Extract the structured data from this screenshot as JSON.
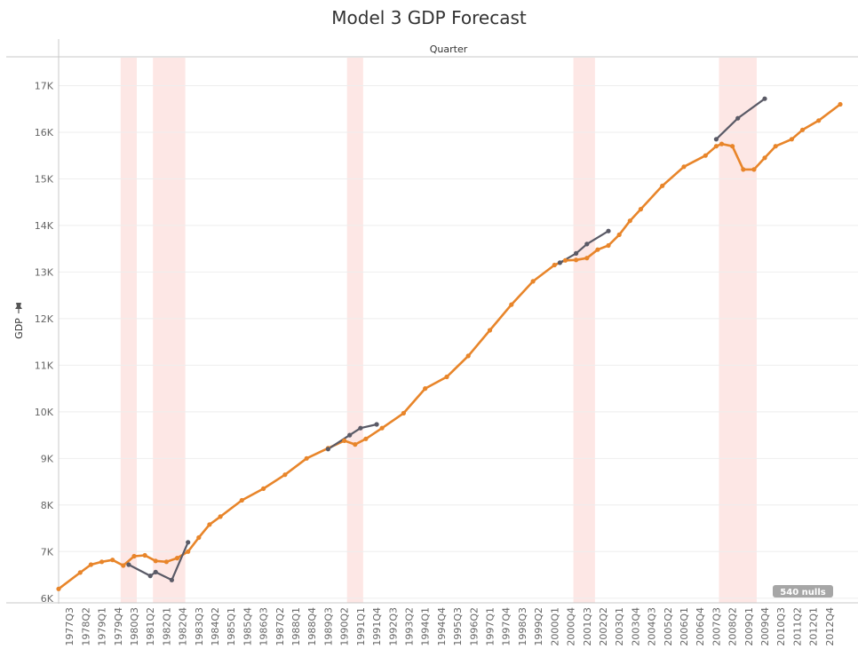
{
  "chart_data": {
    "type": "line",
    "title": "Model 3 GDP Forecast",
    "header": "Quarter",
    "ylabel": "GDP",
    "ylim": [
      5900,
      17600
    ],
    "yticks": [
      6000,
      7000,
      8000,
      9000,
      10000,
      11000,
      12000,
      13000,
      14000,
      15000,
      16000,
      17000
    ],
    "ytick_labels": [
      "6K",
      "7K",
      "8K",
      "9K",
      "10K",
      "11K",
      "12K",
      "13K",
      "14K",
      "15K",
      "16K",
      "17K"
    ],
    "x_start": "1977Q1",
    "x_end": "2013Q2",
    "xtick_labels": [
      "1977Q3",
      "1978Q2",
      "1979Q1",
      "1979Q4",
      "1980Q3",
      "1981Q2",
      "1982Q1",
      "1982Q4",
      "1983Q3",
      "1984Q2",
      "1985Q1",
      "1985Q4",
      "1986Q3",
      "1987Q2",
      "1988Q1",
      "1988Q4",
      "1989Q3",
      "1990Q2",
      "1991Q1",
      "1991Q4",
      "1992Q3",
      "1993Q2",
      "1994Q1",
      "1994Q4",
      "1995Q3",
      "1996Q2",
      "1997Q1",
      "1997Q4",
      "1998Q3",
      "1999Q2",
      "2000Q1",
      "2000Q4",
      "2001Q3",
      "2002Q2",
      "2003Q1",
      "2003Q4",
      "2004Q3",
      "2005Q2",
      "2006Q1",
      "2006Q4",
      "2007Q3",
      "2008Q2",
      "2009Q1",
      "2009Q4",
      "2010Q3",
      "2011Q2",
      "2012Q1",
      "2012Q4"
    ],
    "recession_bands": [
      {
        "start": "1980Q1",
        "end": "1980Q3"
      },
      {
        "start": "1981Q3",
        "end": "1982Q4"
      },
      {
        "start": "1990Q3",
        "end": "1991Q1"
      },
      {
        "start": "2001Q1",
        "end": "2001Q4"
      },
      {
        "start": "2007Q4",
        "end": "2009Q2"
      }
    ],
    "series": [
      {
        "color": "#E8852A",
        "x": [
          "1977Q1",
          "1978Q1",
          "1978Q3",
          "1979Q1",
          "1979Q3",
          "1980Q1",
          "1980Q3",
          "1981Q1",
          "1981Q3",
          "1982Q1",
          "1982Q3",
          "1983Q1",
          "1983Q3",
          "1984Q1",
          "1984Q3",
          "1985Q3",
          "1986Q3",
          "1987Q3",
          "1988Q3",
          "1989Q3",
          "1990Q2",
          "1990Q4",
          "1991Q2",
          "1992Q1",
          "1993Q1",
          "1994Q1",
          "1995Q1",
          "1996Q1",
          "1997Q1",
          "1998Q1",
          "1999Q1",
          "2000Q1",
          "2000Q3",
          "2001Q1",
          "2001Q3",
          "2002Q1",
          "2002Q3",
          "2003Q1",
          "2003Q3",
          "2004Q1",
          "2005Q1",
          "2006Q1",
          "2007Q1",
          "2007Q3",
          "2007Q4",
          "2008Q2",
          "2008Q4",
          "2009Q2",
          "2009Q4",
          "2010Q2",
          "2011Q1",
          "2011Q3",
          "2012Q2",
          "2013Q2"
        ],
        "values": [
          6200,
          6550,
          6720,
          6780,
          6820,
          6700,
          6900,
          6920,
          6800,
          6780,
          6860,
          7000,
          7300,
          7580,
          7750,
          8100,
          8350,
          8650,
          9000,
          9220,
          9380,
          9300,
          9420,
          9650,
          9970,
          10500,
          10750,
          11200,
          11750,
          12300,
          12800,
          13150,
          13250,
          13260,
          13300,
          13480,
          13570,
          13800,
          14100,
          14350,
          14850,
          15260,
          15500,
          15700,
          15750,
          15700,
          15200,
          15200,
          15450,
          15700,
          15850,
          16050,
          16250,
          16600
        ]
      },
      {
        "color": "#5A5A66",
        "x": [
          "1980Q2",
          "1981Q2",
          "1981Q3",
          "1982Q2",
          "1983Q1"
        ],
        "values": [
          6720,
          6480,
          6560,
          6390,
          7200
        ]
      },
      {
        "color": "#5A5A66",
        "x": [
          "1989Q3",
          "1990Q3",
          "1991Q1",
          "1991Q4"
        ],
        "values": [
          9200,
          9500,
          9650,
          9730
        ]
      },
      {
        "color": "#5A5A66",
        "x": [
          "2000Q2",
          "2001Q1",
          "2001Q3",
          "2002Q3"
        ],
        "values": [
          13200,
          13400,
          13600,
          13880
        ]
      },
      {
        "color": "#5A5A66",
        "x": [
          "2007Q3",
          "2008Q3",
          "2009Q4"
        ],
        "values": [
          15850,
          16300,
          16720
        ]
      }
    ],
    "nulls_badge": "540 nulls",
    "grid": true
  }
}
